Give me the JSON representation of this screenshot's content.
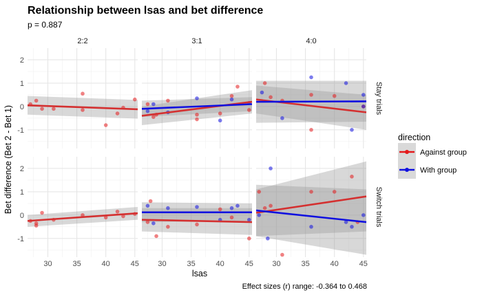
{
  "chart_data": {
    "type": "scatter",
    "title": "Relationship between lsas and bet difference",
    "subtitle": "p = 0.887",
    "caption": "Effect sizes (r) range: -0.364 to 0.468",
    "xlabel": "lsas",
    "ylabel": "Bet difference (Bet 2 - Bet 1)",
    "xlim": [
      26.5,
      45.5
    ],
    "ylim": [
      -1.8,
      2.5
    ],
    "xticks": [
      "30",
      "35",
      "40",
      "45"
    ],
    "yticks": [
      "-1",
      "0",
      "1",
      "2"
    ],
    "grid": true,
    "columns": [
      "2:2",
      "3:1",
      "4:0"
    ],
    "rows": [
      "Stay trials",
      "Switch trials"
    ],
    "legend": {
      "title": "direction",
      "position": "right",
      "entries": [
        {
          "name": "Against group",
          "color": "#e41a1c"
        },
        {
          "name": "With group",
          "color": "#1010e0"
        }
      ]
    },
    "series_colors": {
      "Against group": "#e41a1c",
      "With group": "#1010e0"
    },
    "panels": [
      {
        "row": "Stay trials",
        "col": "2:2",
        "points": [
          {
            "s": "Against group",
            "x": 27,
            "y": 0.1
          },
          {
            "s": "Against group",
            "x": 28,
            "y": 0.25
          },
          {
            "s": "Against group",
            "x": 29,
            "y": -0.1
          },
          {
            "s": "Against group",
            "x": 31,
            "y": -0.1
          },
          {
            "s": "Against group",
            "x": 36,
            "y": 0.55
          },
          {
            "s": "Against group",
            "x": 36,
            "y": -0.15
          },
          {
            "s": "Against group",
            "x": 40,
            "y": -0.8
          },
          {
            "s": "Against group",
            "x": 42,
            "y": -0.3
          },
          {
            "s": "Against group",
            "x": 43,
            "y": -0.05
          },
          {
            "s": "Against group",
            "x": 45,
            "y": 0.3
          }
        ],
        "fits": [
          {
            "s": "Against group",
            "y0": 0.05,
            "y1": -0.12,
            "band0": [
              -0.35,
              0.45
            ],
            "band1": [
              -0.52,
              0.28
            ]
          }
        ]
      },
      {
        "row": "Stay trials",
        "col": "3:1",
        "points": [
          {
            "s": "Against group",
            "x": 27.5,
            "y": 0.1
          },
          {
            "s": "Against group",
            "x": 28.5,
            "y": -0.45
          },
          {
            "s": "Against group",
            "x": 29,
            "y": -0.35
          },
          {
            "s": "Against group",
            "x": 31,
            "y": 0.25
          },
          {
            "s": "Against group",
            "x": 36,
            "y": -0.55
          },
          {
            "s": "Against group",
            "x": 36,
            "y": -0.35
          },
          {
            "s": "Against group",
            "x": 40,
            "y": -0.3
          },
          {
            "s": "Against group",
            "x": 42,
            "y": 0.45
          },
          {
            "s": "Against group",
            "x": 43,
            "y": 0.85
          },
          {
            "s": "Against group",
            "x": 45,
            "y": -0.15
          },
          {
            "s": "With group",
            "x": 27.5,
            "y": -0.2
          },
          {
            "s": "With group",
            "x": 28.5,
            "y": 0.1
          },
          {
            "s": "With group",
            "x": 31,
            "y": -0.25
          },
          {
            "s": "With group",
            "x": 36,
            "y": 0.35
          },
          {
            "s": "With group",
            "x": 40,
            "y": -0.6
          },
          {
            "s": "With group",
            "x": 42,
            "y": 0.3
          },
          {
            "s": "With group",
            "x": 45,
            "y": 0.15
          }
        ],
        "fits": [
          {
            "s": "Against group",
            "y0": -0.4,
            "y1": 0.2,
            "band0": [
              -0.8,
              0.0
            ],
            "band1": [
              -0.3,
              0.7
            ]
          },
          {
            "s": "With group",
            "y0": -0.1,
            "y1": 0.1,
            "band0": [
              -0.45,
              0.25
            ],
            "band1": [
              -0.2,
              0.4
            ]
          }
        ]
      },
      {
        "row": "Stay trials",
        "col": "4:0",
        "points": [
          {
            "s": "Against group",
            "x": 28,
            "y": 1.0
          },
          {
            "s": "Against group",
            "x": 29,
            "y": 0.4
          },
          {
            "s": "Against group",
            "x": 31,
            "y": 0.25
          },
          {
            "s": "Against group",
            "x": 36,
            "y": -1.0
          },
          {
            "s": "Against group",
            "x": 36,
            "y": 0.5
          },
          {
            "s": "Against group",
            "x": 40,
            "y": 0.45
          },
          {
            "s": "Against group",
            "x": 45,
            "y": 0.0
          },
          {
            "s": "With group",
            "x": 27.5,
            "y": 0.6
          },
          {
            "s": "With group",
            "x": 31,
            "y": -0.5
          },
          {
            "s": "With group",
            "x": 36,
            "y": 1.25
          },
          {
            "s": "With group",
            "x": 42,
            "y": 1.0
          },
          {
            "s": "With group",
            "x": 43,
            "y": -1.0
          },
          {
            "s": "With group",
            "x": 45,
            "y": 0.5
          },
          {
            "s": "With group",
            "x": 45,
            "y": 0.0
          }
        ],
        "fits": [
          {
            "s": "Against group",
            "y0": 0.3,
            "y1": -0.25,
            "band0": [
              -0.3,
              0.9
            ],
            "band1": [
              -1.0,
              0.5
            ]
          },
          {
            "s": "With group",
            "y0": 0.2,
            "y1": 0.22,
            "band0": [
              -0.7,
              1.1
            ],
            "band1": [
              -0.65,
              1.1
            ]
          }
        ]
      },
      {
        "row": "Switch trials",
        "col": "2:2",
        "points": [
          {
            "s": "Against group",
            "x": 27,
            "y": -0.25
          },
          {
            "s": "Against group",
            "x": 28,
            "y": -0.35
          },
          {
            "s": "Against group",
            "x": 28,
            "y": -0.45
          },
          {
            "s": "Against group",
            "x": 29,
            "y": 0.1
          },
          {
            "s": "Against group",
            "x": 31,
            "y": -0.2
          },
          {
            "s": "Against group",
            "x": 36,
            "y": 0.0
          },
          {
            "s": "Against group",
            "x": 40,
            "y": -0.1
          },
          {
            "s": "Against group",
            "x": 42,
            "y": 0.15
          },
          {
            "s": "Against group",
            "x": 43,
            "y": -0.05
          },
          {
            "s": "Against group",
            "x": 45,
            "y": 0.05
          }
        ],
        "fits": [
          {
            "s": "Against group",
            "y0": -0.25,
            "y1": 0.08,
            "band0": [
              -0.5,
              0.0
            ],
            "band1": [
              -0.2,
              0.35
            ]
          }
        ]
      },
      {
        "row": "Switch trials",
        "col": "3:1",
        "points": [
          {
            "s": "Against group",
            "x": 27.5,
            "y": -0.3
          },
          {
            "s": "Against group",
            "x": 28,
            "y": 0.6
          },
          {
            "s": "Against group",
            "x": 29,
            "y": -0.9
          },
          {
            "s": "Against group",
            "x": 31,
            "y": -0.5
          },
          {
            "s": "Against group",
            "x": 36,
            "y": -0.4
          },
          {
            "s": "Against group",
            "x": 40,
            "y": 0.25
          },
          {
            "s": "Against group",
            "x": 42,
            "y": -0.1
          },
          {
            "s": "Against group",
            "x": 45,
            "y": -1.0
          },
          {
            "s": "With group",
            "x": 27.5,
            "y": 0.4
          },
          {
            "s": "With group",
            "x": 28.5,
            "y": -0.35
          },
          {
            "s": "With group",
            "x": 31,
            "y": 0.3
          },
          {
            "s": "With group",
            "x": 36,
            "y": 0.35
          },
          {
            "s": "With group",
            "x": 40,
            "y": -0.2
          },
          {
            "s": "With group",
            "x": 42,
            "y": 0.3
          },
          {
            "s": "With group",
            "x": 43,
            "y": 0.4
          },
          {
            "s": "With group",
            "x": 45,
            "y": -0.2
          }
        ],
        "fits": [
          {
            "s": "Against group",
            "y0": -0.2,
            "y1": -0.3,
            "band0": [
              -0.7,
              0.3
            ],
            "band1": [
              -0.85,
              0.3
            ]
          },
          {
            "s": "With group",
            "y0": 0.12,
            "y1": 0.12,
            "band0": [
              -0.3,
              0.55
            ],
            "band1": [
              -0.25,
              0.5
            ]
          }
        ]
      },
      {
        "row": "Switch trials",
        "col": "4:0",
        "points": [
          {
            "s": "Against group",
            "x": 27,
            "y": 1.0
          },
          {
            "s": "Against group",
            "x": 28,
            "y": 0.3
          },
          {
            "s": "Against group",
            "x": 29,
            "y": 0.4
          },
          {
            "s": "Against group",
            "x": 31,
            "y": -1.7
          },
          {
            "s": "Against group",
            "x": 36,
            "y": 1.0
          },
          {
            "s": "Against group",
            "x": 40,
            "y": 1.0
          },
          {
            "s": "Against group",
            "x": 43,
            "y": 1.65
          },
          {
            "s": "Against group",
            "x": 44,
            "y": -0.3
          },
          {
            "s": "With group",
            "x": 27,
            "y": 0.0
          },
          {
            "s": "With group",
            "x": 28.5,
            "y": -1.0
          },
          {
            "s": "With group",
            "x": 29,
            "y": 2.0
          },
          {
            "s": "With group",
            "x": 36,
            "y": -0.5
          },
          {
            "s": "With group",
            "x": 42,
            "y": -0.3
          },
          {
            "s": "With group",
            "x": 43,
            "y": -0.5
          },
          {
            "s": "With group",
            "x": 45,
            "y": 0.0
          }
        ],
        "fits": [
          {
            "s": "Against group",
            "y0": 0.1,
            "y1": 0.8,
            "band0": [
              -0.9,
              1.1
            ],
            "band1": [
              -0.7,
              2.3
            ]
          },
          {
            "s": "With group",
            "y0": 0.2,
            "y1": -0.3,
            "band0": [
              -0.9,
              1.3
            ],
            "band1": [
              -1.7,
              1.1
            ]
          }
        ]
      }
    ]
  }
}
